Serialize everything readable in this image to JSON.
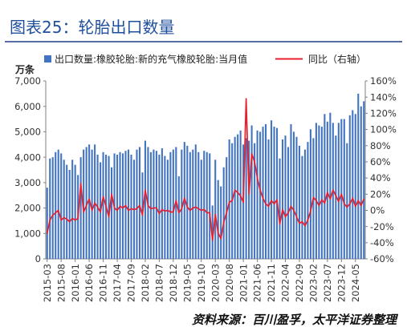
{
  "colors": {
    "title": "#1f4f9f",
    "title_rule": "#1f3d8a",
    "axis": "#808080"
  },
  "source": "资料来源：百川盈孚，太平洋证券整理",
  "chart_data": {
    "type": "bar",
    "title": "图表25：轮胎出口数量",
    "grid": false,
    "legend": "top",
    "x": [
      "2015-03",
      "2015-04",
      "2015-05",
      "2015-06",
      "2015-07",
      "2015-08",
      "2015-09",
      "2015-10",
      "2015-11",
      "2015-12",
      "2016-01",
      "2016-02",
      "2016-03",
      "2016-04",
      "2016-05",
      "2016-06",
      "2016-07",
      "2016-08",
      "2016-09",
      "2016-10",
      "2016-11",
      "2016-12",
      "2017-01",
      "2017-02",
      "2017-03",
      "2017-04",
      "2017-05",
      "2017-06",
      "2017-07",
      "2017-08",
      "2017-09",
      "2017-10",
      "2017-11",
      "2017-12",
      "2018-01",
      "2018-02",
      "2018-03",
      "2018-04",
      "2018-05",
      "2018-06",
      "2018-07",
      "2018-08",
      "2018-09",
      "2018-10",
      "2018-11",
      "2018-12",
      "2019-01",
      "2019-02",
      "2019-03",
      "2019-04",
      "2019-05",
      "2019-06",
      "2019-07",
      "2019-08",
      "2019-09",
      "2019-10",
      "2019-11",
      "2019-12",
      "2020-01",
      "2020-02",
      "2020-03",
      "2020-04",
      "2020-05",
      "2020-06",
      "2020-07",
      "2020-08",
      "2020-09",
      "2020-10",
      "2020-11",
      "2020-12",
      "2021-01",
      "2021-02",
      "2021-03",
      "2021-04",
      "2021-05",
      "2021-06",
      "2021-07",
      "2021-08",
      "2021-09",
      "2021-10",
      "2021-11",
      "2021-12",
      "2022-01",
      "2022-02",
      "2022-03",
      "2022-04",
      "2022-05",
      "2022-06",
      "2022-07",
      "2022-08",
      "2022-09",
      "2022-10",
      "2022-11",
      "2022-12",
      "2023-01",
      "2023-02",
      "2023-03",
      "2023-04",
      "2023-05",
      "2023-06",
      "2023-07",
      "2023-08",
      "2023-09",
      "2023-10",
      "2023-11",
      "2023-12",
      "2024-01",
      "2024-02",
      "2024-03",
      "2024-04",
      "2024-05",
      "2024-06",
      "2024-07",
      "2024-08"
    ],
    "x_tick_labels": [
      "2015-03",
      "2015-08",
      "2016-01",
      "2016-06",
      "2016-11",
      "2017-04",
      "2017-09",
      "2018-02",
      "2018-07",
      "2018-12",
      "2019-05",
      "2019-10",
      "2020-03",
      "2020-08",
      "2021-01",
      "2021-06",
      "2021-11",
      "2022-04",
      "2022-09",
      "2023-02",
      "2023-07",
      "2023-12",
      "2024-05"
    ],
    "y_left": {
      "label": "万条",
      "min": 0,
      "max": 7000,
      "tick_labels": [
        "0",
        "1,000",
        "2,000",
        "3,000",
        "4,000",
        "5,000",
        "6,000",
        "7,000"
      ]
    },
    "y_right": {
      "min": -60,
      "max": 160,
      "tick_labels": [
        "-60%",
        "-40%",
        "-20%",
        "0%",
        "20%",
        "40%",
        "60%",
        "80%",
        "100%",
        "120%",
        "140%",
        "160%"
      ]
    },
    "series": [
      {
        "name": "出口数量:橡胶轮胎:新的充气橡胶轮胎:当月值",
        "type": "bar",
        "y_axis": "left",
        "color": "#4374c1",
        "values": [
          2800,
          3950,
          4000,
          4200,
          4300,
          4150,
          3900,
          3700,
          3500,
          3900,
          3700,
          3300,
          4000,
          4300,
          4400,
          4500,
          4300,
          4500,
          4100,
          3800,
          4200,
          4100,
          4050,
          3600,
          4150,
          4100,
          4200,
          4150,
          4250,
          4300,
          4100,
          3900,
          4300,
          4400,
          3400,
          4650,
          4400,
          4200,
          4300,
          4250,
          4100,
          4350,
          4050,
          3900,
          4200,
          4300,
          4400,
          3250,
          4300,
          4600,
          4450,
          4200,
          4300,
          4500,
          4200,
          3900,
          4250,
          4200,
          4150,
          2100,
          3900,
          3100,
          2850,
          3600,
          4000,
          4700,
          4550,
          4800,
          4900,
          5050,
          4500,
          4750,
          4650,
          5250,
          4550,
          5050,
          5000,
          5200,
          5300,
          4700,
          5450,
          5200,
          5150,
          3950,
          4700,
          4850,
          4400,
          5300,
          5000,
          4800,
          4450,
          4050,
          4300,
          4600,
          5100,
          4750,
          5350,
          5250,
          5200,
          5700,
          5400,
          5750,
          5350,
          4850,
          5350,
          5500,
          5500,
          4550,
          5650,
          5850,
          5700,
          6500,
          6000,
          6200
        ]
      },
      {
        "name": "同比（右轴）",
        "type": "line",
        "y_axis": "right",
        "color": "#e8202e",
        "values": [
          -28,
          -12,
          -6,
          -3,
          0,
          -12,
          -9,
          -11,
          -14,
          -10,
          -12,
          -10,
          33,
          -2,
          6,
          14,
          0,
          9,
          4,
          -2,
          17,
          5,
          -8,
          20,
          3,
          0,
          5,
          3,
          6,
          0,
          2,
          1,
          2,
          6,
          -6,
          25,
          6,
          2,
          3,
          3,
          -4,
          1,
          -1,
          0,
          -2,
          -2,
          12,
          -3,
          2,
          15,
          4,
          0,
          3,
          4,
          2,
          0,
          1,
          -3,
          -3,
          -37,
          -5,
          -28,
          -35,
          -15,
          -3,
          10,
          12,
          25,
          22,
          18,
          10,
          138,
          20,
          70,
          60,
          40,
          25,
          15,
          8,
          5,
          12,
          8,
          13,
          -17,
          1,
          -8,
          -3,
          5,
          0,
          -8,
          -16,
          -14,
          -19,
          -12,
          -1,
          16,
          12,
          6,
          13,
          9,
          22,
          14,
          25,
          18,
          11,
          20,
          8,
          4,
          8,
          15,
          5,
          12,
          6,
          14
        ]
      }
    ]
  }
}
